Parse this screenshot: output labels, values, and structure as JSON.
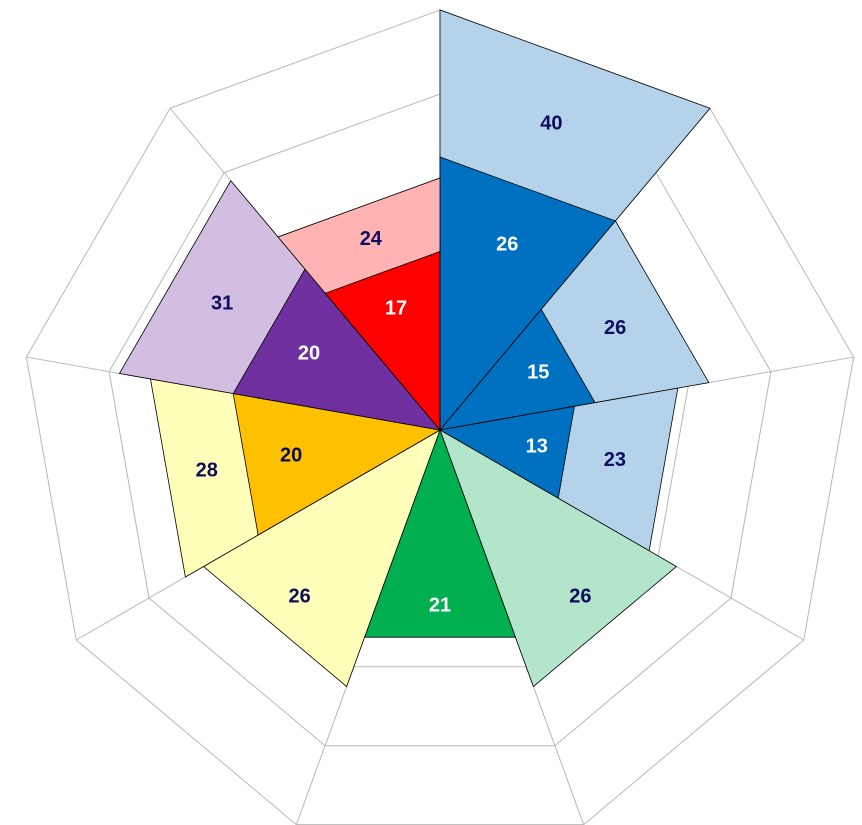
{
  "chart_data": {
    "type": "polar-sector",
    "rlim": [
      0,
      40
    ],
    "rticks": [
      8,
      16,
      24,
      32,
      40
    ],
    "grid": true,
    "grid_color": "#b8b8b8",
    "sectors": [
      {
        "values": [
          40,
          26
        ],
        "colors": [
          "#b4d3eb",
          "#0070c0"
        ],
        "label_colors": [
          "#0d0d5e",
          "#ffffff"
        ]
      },
      {
        "values": [
          26,
          15
        ],
        "colors": [
          "#b4d3eb",
          "#0070c0"
        ],
        "label_colors": [
          "#0d0d5e",
          "#ffffff"
        ]
      },
      {
        "values": [
          23,
          13
        ],
        "colors": [
          "#b4d3eb",
          "#0070c0"
        ],
        "label_colors": [
          "#0d0d5e",
          "#ffffff"
        ]
      },
      {
        "values": [
          26
        ],
        "colors": [
          "#b3e5cb"
        ],
        "label_colors": [
          "#0d0d5e"
        ]
      },
      {
        "values": [
          21
        ],
        "colors": [
          "#00b050"
        ],
        "label_colors": [
          "#ffffff"
        ]
      },
      {
        "values": [
          26
        ],
        "colors": [
          "#ffffb9"
        ],
        "label_colors": [
          "#0d0d5e"
        ]
      },
      {
        "values": [
          28,
          20
        ],
        "colors": [
          "#ffffb9",
          "#ffc000"
        ],
        "label_colors": [
          "#0d0d5e",
          "#0d0d5e"
        ]
      },
      {
        "values": [
          31,
          20
        ],
        "colors": [
          "#d2bee1",
          "#7030a0"
        ],
        "label_colors": [
          "#0d0d5e",
          "#ffffff"
        ]
      },
      {
        "values": [
          24,
          17
        ],
        "colors": [
          "#ffb3b3",
          "#ff0000"
        ],
        "label_colors": [
          "#0d0d5e",
          "#ffffff"
        ]
      }
    ]
  }
}
